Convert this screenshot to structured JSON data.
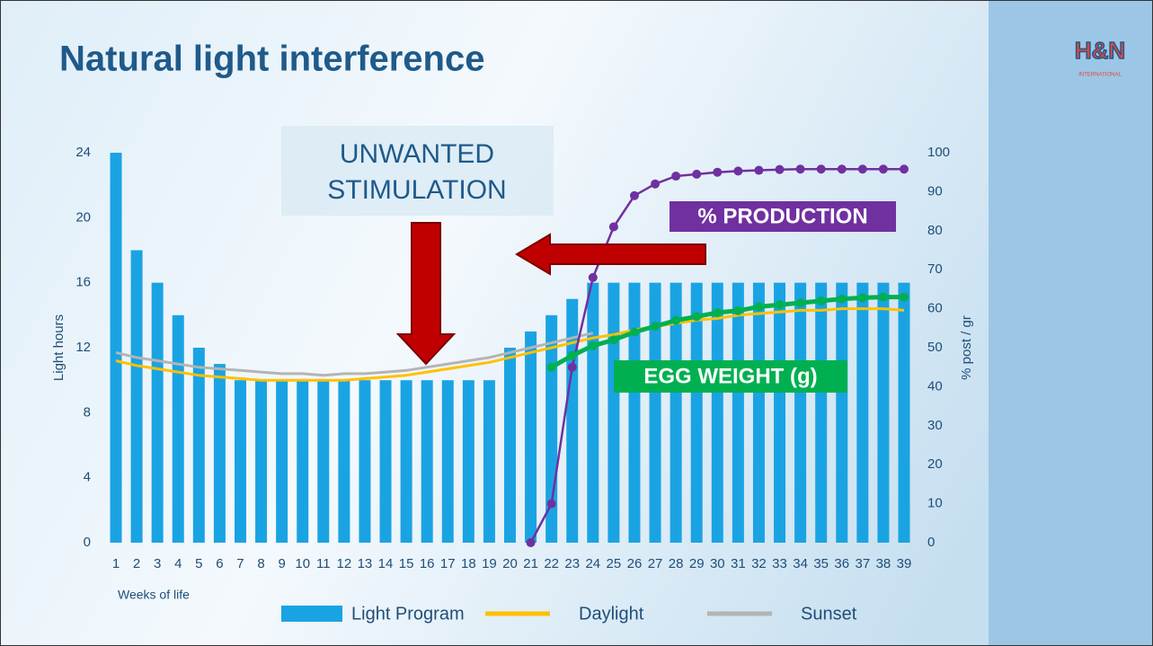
{
  "title": "Natural light interference",
  "logo": {
    "text": "H&N",
    "subtext": "INTERNATIONAL"
  },
  "chart_data": {
    "type": "bar",
    "categories": [
      "1",
      "2",
      "3",
      "4",
      "5",
      "6",
      "7",
      "8",
      "9",
      "10",
      "11",
      "12",
      "13",
      "14",
      "15",
      "16",
      "17",
      "18",
      "19",
      "20",
      "21",
      "22",
      "23",
      "24",
      "25",
      "26",
      "27",
      "28",
      "29",
      "30",
      "31",
      "32",
      "33",
      "34",
      "35",
      "36",
      "37",
      "38",
      "39"
    ],
    "x_label": "Weeks of life",
    "y_label": "Light hours",
    "y2_label": "% post / gr",
    "ylim": [
      0,
      24
    ],
    "yticks": [
      0,
      4,
      8,
      12,
      16,
      20,
      24
    ],
    "y2lim": [
      0,
      100
    ],
    "y2ticks": [
      0,
      10,
      20,
      30,
      40,
      50,
      60,
      70,
      80,
      90,
      100
    ],
    "annotations": [
      "UNWANTED",
      "STIMULATION"
    ],
    "series": [
      {
        "name": "Light Program",
        "type": "bar",
        "color": "#1aa3e3",
        "values": [
          24,
          18,
          16,
          14,
          12,
          11,
          10,
          10,
          10,
          10,
          10,
          10,
          10,
          10,
          10,
          10,
          10,
          10,
          10,
          12,
          13,
          14,
          15,
          16,
          16,
          16,
          16,
          16,
          16,
          16,
          16,
          16,
          16,
          16,
          16,
          16,
          16,
          16,
          16
        ]
      },
      {
        "name": "Daylight",
        "type": "line",
        "color": "#ffc000",
        "values": [
          11.2,
          10.9,
          10.7,
          10.5,
          10.3,
          10.2,
          10.1,
          10.0,
          10.0,
          10.0,
          10.0,
          10.0,
          10.1,
          10.2,
          10.3,
          10.5,
          10.7,
          10.9,
          11.1,
          11.4,
          11.7,
          12.0,
          12.3,
          12.6,
          12.8,
          13.1,
          13.3,
          13.5,
          13.7,
          13.8,
          14.0,
          14.1,
          14.2,
          14.3,
          14.3,
          14.4,
          14.4,
          14.4,
          14.3
        ]
      },
      {
        "name": "Sunset",
        "type": "line",
        "color": "#b4b4b4",
        "values": [
          11.7,
          11.4,
          11.2,
          11.0,
          10.8,
          10.7,
          10.6,
          10.5,
          10.4,
          10.4,
          10.3,
          10.4,
          10.4,
          10.5,
          10.6,
          10.8,
          11.0,
          11.2,
          11.4,
          11.7,
          12.0,
          12.3,
          12.6,
          12.9,
          null,
          null,
          null,
          null,
          null,
          null,
          null,
          null,
          null,
          null,
          null,
          null,
          null,
          null,
          null
        ]
      },
      {
        "name": "% PRODUCTION",
        "type": "line",
        "axis": "y2",
        "color": "#7030a0",
        "values": [
          null,
          null,
          null,
          null,
          null,
          null,
          null,
          null,
          null,
          null,
          null,
          null,
          null,
          null,
          null,
          null,
          null,
          null,
          null,
          null,
          0,
          10,
          45,
          68,
          81,
          89,
          92,
          94,
          94.5,
          95,
          95.3,
          95.5,
          95.7,
          95.8,
          95.8,
          95.8,
          95.8,
          95.8,
          95.8
        ]
      },
      {
        "name": "EGG WEIGHT (g)",
        "type": "line",
        "axis": "y2",
        "color": "#00b050",
        "values": [
          null,
          null,
          null,
          null,
          null,
          null,
          null,
          null,
          null,
          null,
          null,
          null,
          null,
          null,
          null,
          null,
          null,
          null,
          null,
          null,
          null,
          45,
          48,
          50.5,
          52,
          54,
          55.5,
          57,
          58,
          59,
          59.5,
          60.5,
          61,
          61.5,
          62,
          62.5,
          62.8,
          63,
          63
        ]
      }
    ]
  }
}
